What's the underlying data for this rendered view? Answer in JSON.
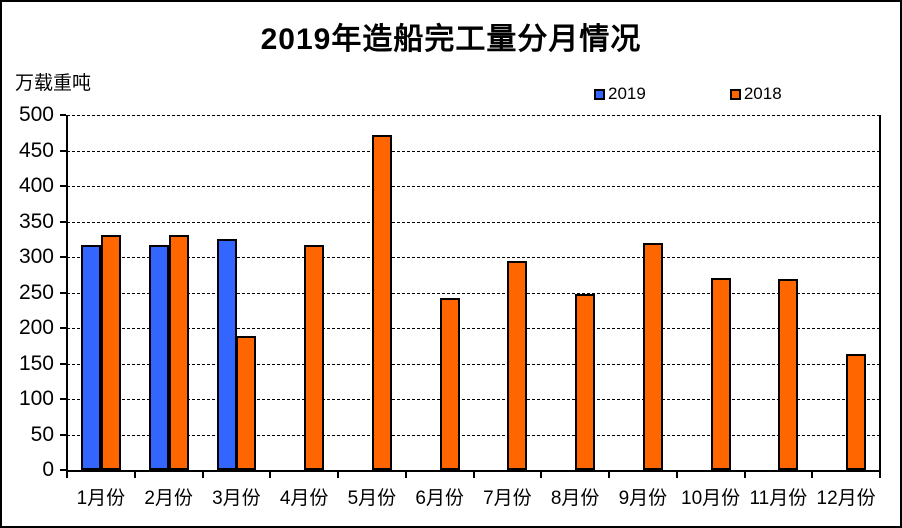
{
  "title": "2019年造船完工量分月情况",
  "y_axis_unit": "万载重吨",
  "legend": {
    "items": [
      {
        "label": "2019",
        "color": "#3366FF"
      },
      {
        "label": "2018",
        "color": "#FF6600"
      }
    ]
  },
  "chart_data": {
    "type": "bar",
    "title": "2019年造船完工量分月情况",
    "ylabel": "万载重吨",
    "xlabel": "",
    "categories": [
      "1月份",
      "2月份",
      "3月份",
      "4月份",
      "5月份",
      "6月份",
      "7月份",
      "8月份",
      "9月份",
      "10月份",
      "11月份",
      "12月份"
    ],
    "series": [
      {
        "name": "2019",
        "color": "#3366FF",
        "values": [
          317,
          317,
          325,
          null,
          null,
          null,
          null,
          null,
          null,
          null,
          null,
          null
        ]
      },
      {
        "name": "2018",
        "color": "#FF6600",
        "values": [
          331,
          331,
          189,
          317,
          472,
          242,
          295,
          248,
          320,
          270,
          269,
          164
        ]
      }
    ],
    "ylim": [
      0,
      500
    ],
    "ytick_interval": 50,
    "grid": "horizontal-dashed",
    "legend_position": "top"
  }
}
